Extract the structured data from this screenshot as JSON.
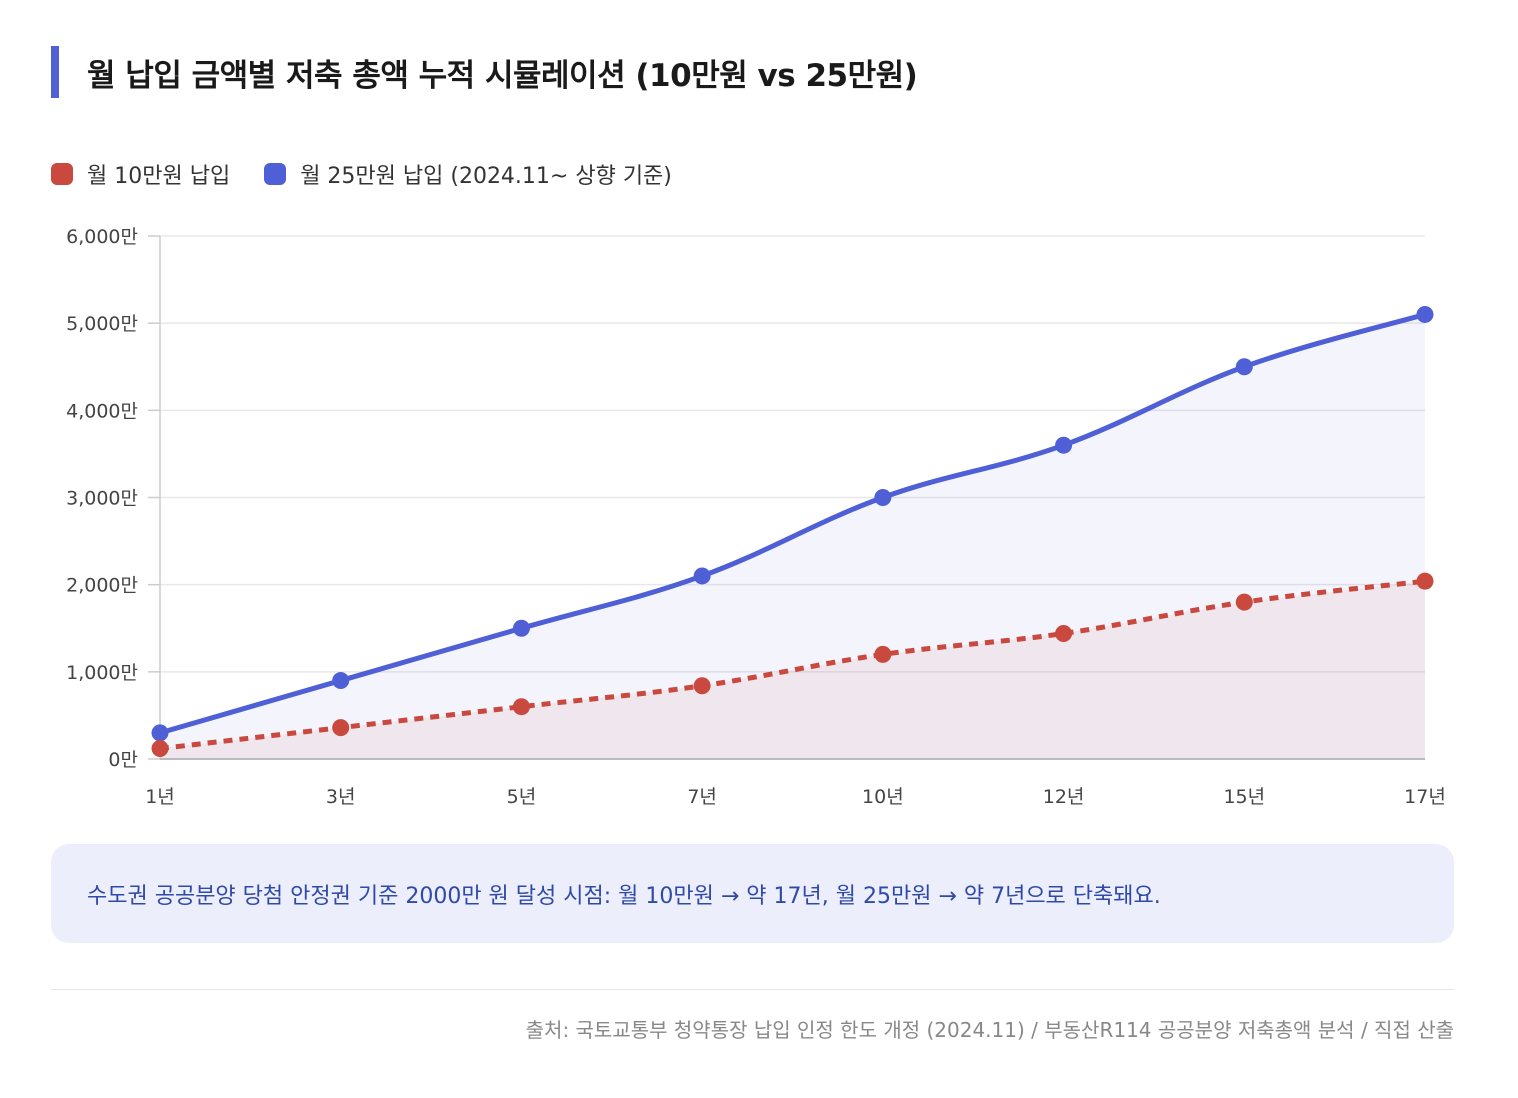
{
  "title": "월 납입 금액별 저축 총액 누적 시뮬레이션 (10만원 vs 25만원)",
  "legend": {
    "items": [
      {
        "label": "월 10만원 납입",
        "color": "#c9493f"
      },
      {
        "label": "월 25만원 납입 (2024.11~ 상향 기준)",
        "color": "#4f5fd6"
      }
    ]
  },
  "chart_data": {
    "type": "line",
    "x": [
      "1년",
      "3년",
      "5년",
      "7년",
      "10년",
      "12년",
      "15년",
      "17년"
    ],
    "yticks": [
      "0만",
      "1,000만",
      "2,000만",
      "3,000만",
      "4,000만",
      "5,000만",
      "6,000만"
    ],
    "ylim": [
      0,
      6000
    ],
    "grid": true,
    "legend_position": "top-left",
    "series": [
      {
        "name": "월 10만원 납입",
        "color": "#c9493f",
        "style": "dashed",
        "values": [
          120,
          360,
          600,
          840,
          1200,
          1440,
          1800,
          2040
        ]
      },
      {
        "name": "월 25만원 납입 (2024.11~ 상향 기준)",
        "color": "#4f5fd6",
        "style": "solid",
        "values": [
          300,
          900,
          1500,
          2100,
          3000,
          3600,
          4500,
          5100
        ]
      }
    ]
  },
  "note": "수도권 공공분양 당첨 안정권 기준 2000만 원 달성 시점: 월 10만원 → 약 17년, 월 25만원 → 약 7년으로 단축돼요.",
  "source": "출처: 국토교통부 청약통장 납입 인정 한도 개정 (2024.11) / 부동산R114 공공분양 저축총액 분석 / 직접 산출"
}
